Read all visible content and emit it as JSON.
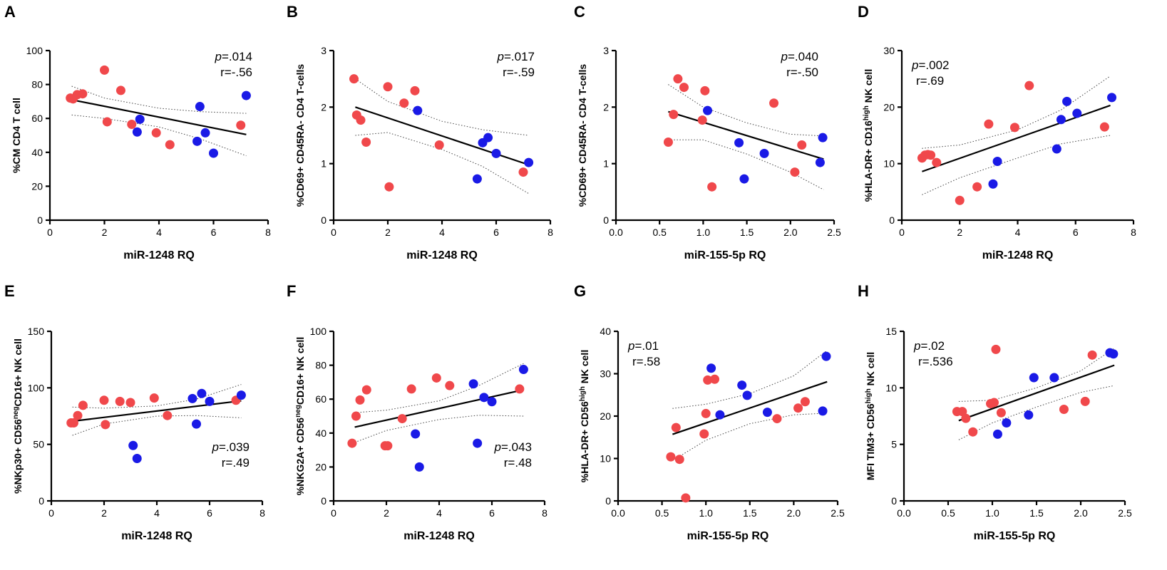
{
  "colors": {
    "red": "#f0484b",
    "blue": "#1a1ae6"
  },
  "chart_data": [
    {
      "type": "scatter",
      "panel": "A",
      "ylabel_parts": [
        {
          "t": "%CM CD4 T cell"
        }
      ],
      "xlabel": "miR-1248 RQ",
      "xlim": [
        0,
        8
      ],
      "ylim": [
        0,
        100
      ],
      "xticks": [
        "0",
        "2",
        "4",
        "6",
        "8"
      ],
      "yticks": [
        "0",
        "20",
        "40",
        "60",
        "80",
        "100"
      ],
      "stat_p": ".014",
      "stat_r": "r=-.56",
      "stat_pos": "top-right",
      "fit": [
        [
          0.8,
          71
        ],
        [
          7.2,
          50.5
        ]
      ],
      "ci_upper": [
        [
          0.8,
          79
        ],
        [
          2,
          72
        ],
        [
          4,
          66
        ],
        [
          5.5,
          64
        ],
        [
          7.2,
          63
        ]
      ],
      "ci_lower": [
        [
          0.8,
          62
        ],
        [
          2,
          60
        ],
        [
          4,
          55
        ],
        [
          5.5,
          48
        ],
        [
          7.2,
          38
        ]
      ],
      "series": [
        {
          "name": "red",
          "x": [
            0.75,
            0.85,
            1.0,
            1.2,
            2.0,
            2.1,
            2.6,
            3.0,
            3.9,
            4.4,
            7.0
          ],
          "y": [
            72,
            71.5,
            74,
            74.5,
            88.5,
            58,
            76.5,
            56.5,
            51.5,
            44.5,
            56
          ]
        },
        {
          "name": "blue",
          "x": [
            3.2,
            3.3,
            5.4,
            5.5,
            5.7,
            6.0,
            7.2
          ],
          "y": [
            52,
            59.5,
            46.5,
            67,
            51.5,
            39.5,
            73.5
          ]
        }
      ]
    },
    {
      "type": "scatter",
      "panel": "B",
      "ylabel_parts": [
        {
          "t": "%CD69+ CD45RA- CD4 T-cells"
        }
      ],
      "xlabel": "miR-1248 RQ",
      "xlim": [
        0,
        8
      ],
      "ylim": [
        0,
        3
      ],
      "xticks": [
        "0",
        "2",
        "4",
        "6",
        "8"
      ],
      "yticks": [
        "0",
        "1",
        "2",
        "3"
      ],
      "stat_p": ".017",
      "stat_r": "r=-.59",
      "stat_pos": "top-right",
      "fit": [
        [
          0.8,
          2.0
        ],
        [
          7.2,
          0.98
        ]
      ],
      "ci_upper": [
        [
          0.8,
          2.5
        ],
        [
          2,
          2.1
        ],
        [
          4,
          1.75
        ],
        [
          5.5,
          1.6
        ],
        [
          7.2,
          1.5
        ]
      ],
      "ci_lower": [
        [
          0.8,
          1.5
        ],
        [
          2,
          1.55
        ],
        [
          4,
          1.25
        ],
        [
          5.5,
          0.95
        ],
        [
          7.2,
          0.47
        ]
      ],
      "series": [
        {
          "name": "red",
          "x": [
            0.75,
            0.85,
            1.0,
            1.2,
            2.0,
            2.05,
            2.6,
            3.0,
            3.9,
            7.0
          ],
          "y": [
            2.5,
            1.86,
            1.77,
            1.38,
            2.36,
            0.59,
            2.07,
            2.29,
            1.33,
            0.85
          ]
        },
        {
          "name": "blue",
          "x": [
            3.1,
            5.3,
            5.5,
            5.7,
            6.0,
            7.2
          ],
          "y": [
            1.94,
            0.73,
            1.37,
            1.46,
            1.18,
            1.02
          ]
        }
      ]
    },
    {
      "type": "scatter",
      "panel": "C",
      "ylabel_parts": [
        {
          "t": "%CD69+ CD45RA- CD4 T-cells"
        }
      ],
      "xlabel": "miR-155-5p RQ",
      "xlim": [
        0,
        2.5
      ],
      "ylim": [
        0,
        3
      ],
      "xticks": [
        "0.0",
        "0.5",
        "1.0",
        "1.5",
        "2.0",
        "2.5"
      ],
      "yticks": [
        "0",
        "1",
        "2",
        "3"
      ],
      "stat_p": ".040",
      "stat_r": "r=-.50",
      "stat_pos": "top-right",
      "fit": [
        [
          0.6,
          1.92
        ],
        [
          2.38,
          1.08
        ]
      ],
      "ci_upper": [
        [
          0.6,
          2.4
        ],
        [
          1.0,
          2.0
        ],
        [
          1.5,
          1.72
        ],
        [
          2.0,
          1.52
        ],
        [
          2.38,
          1.49
        ]
      ],
      "ci_lower": [
        [
          0.6,
          1.42
        ],
        [
          1.0,
          1.42
        ],
        [
          1.5,
          1.17
        ],
        [
          2.0,
          0.85
        ],
        [
          2.38,
          0.54
        ]
      ],
      "series": [
        {
          "name": "red",
          "x": [
            0.6,
            0.66,
            0.71,
            0.78,
            0.99,
            1.02,
            1.1,
            1.81,
            2.05,
            2.13
          ],
          "y": [
            1.38,
            1.87,
            2.5,
            2.35,
            1.77,
            2.29,
            0.59,
            2.07,
            0.85,
            1.33
          ]
        },
        {
          "name": "blue",
          "x": [
            1.05,
            1.41,
            1.47,
            1.7,
            2.34,
            2.37
          ],
          "y": [
            1.94,
            1.37,
            0.73,
            1.18,
            1.02,
            1.46
          ]
        }
      ]
    },
    {
      "type": "scatter",
      "panel": "D",
      "ylabel_parts": [
        {
          "t": "%HLA-DR+ CD16"
        },
        {
          "t": "high",
          "sup": true
        },
        {
          "t": " NK cell"
        }
      ],
      "xlabel": "miR-1248 RQ",
      "xlim": [
        0,
        8
      ],
      "ylim": [
        0,
        30
      ],
      "xticks": [
        "0",
        "2",
        "4",
        "6",
        "8"
      ],
      "yticks": [
        "0",
        "10",
        "20",
        "30"
      ],
      "stat_p": ".002",
      "stat_r": "r=.69",
      "stat_pos": "top-left",
      "fit": [
        [
          0.7,
          8.6
        ],
        [
          7.2,
          20.3
        ]
      ],
      "ci_upper": [
        [
          0.7,
          12.7
        ],
        [
          2,
          13.3
        ],
        [
          4,
          16
        ],
        [
          5.5,
          19.5
        ],
        [
          7.2,
          25.5
        ]
      ],
      "ci_lower": [
        [
          0.7,
          4.5
        ],
        [
          2,
          7.5
        ],
        [
          4,
          11
        ],
        [
          5.5,
          13.5
        ],
        [
          7.2,
          15
        ]
      ],
      "series": [
        {
          "name": "red",
          "x": [
            0.7,
            0.8,
            0.9,
            1.0,
            1.2,
            2.0,
            2.6,
            3.0,
            3.9,
            4.4,
            7.0
          ],
          "y": [
            11,
            11.5,
            11.6,
            11.5,
            10.2,
            3.5,
            5.9,
            17,
            16.4,
            23.8,
            16.5
          ]
        },
        {
          "name": "blue",
          "x": [
            3.15,
            3.3,
            5.35,
            5.5,
            5.7,
            6.05,
            7.25
          ],
          "y": [
            6.4,
            10.4,
            12.6,
            17.8,
            21,
            18.9,
            21.7
          ]
        }
      ]
    },
    {
      "type": "scatter",
      "panel": "E",
      "ylabel_parts": [
        {
          "t": "%NKp30+ CD56"
        },
        {
          "t": "neg",
          "sup": true
        },
        {
          "t": "CD16+ NK cell"
        }
      ],
      "xlabel": "miR-1248 RQ",
      "xlim": [
        0,
        8
      ],
      "ylim": [
        0,
        150
      ],
      "xticks": [
        "0",
        "2",
        "4",
        "6",
        "8"
      ],
      "yticks": [
        "0",
        "50",
        "100",
        "150"
      ],
      "stat_p": ".039",
      "stat_r": "r=.49",
      "stat_pos": "bottom-right",
      "fit": [
        [
          0.8,
          70.5
        ],
        [
          7.2,
          88.5
        ]
      ],
      "ci_upper": [
        [
          0.8,
          83
        ],
        [
          2,
          82
        ],
        [
          4,
          84
        ],
        [
          5.5,
          90
        ],
        [
          7.2,
          103
        ]
      ],
      "ci_lower": [
        [
          0.8,
          58
        ],
        [
          2,
          68
        ],
        [
          4,
          75
        ],
        [
          5.5,
          75.5
        ],
        [
          7.2,
          73.5
        ]
      ],
      "series": [
        {
          "name": "red",
          "x": [
            0.75,
            0.85,
            1.0,
            1.2,
            2.0,
            2.05,
            2.6,
            3.0,
            3.9,
            4.4,
            7.0
          ],
          "y": [
            69,
            69,
            75.5,
            84.5,
            89,
            67.5,
            88,
            87,
            91,
            75.5,
            89
          ]
        },
        {
          "name": "blue",
          "x": [
            3.1,
            3.25,
            5.35,
            5.5,
            5.7,
            6.0,
            7.2
          ],
          "y": [
            49,
            37.5,
            90.5,
            68,
            95,
            88,
            93.5
          ]
        }
      ]
    },
    {
      "type": "scatter",
      "panel": "F",
      "ylabel_parts": [
        {
          "t": "%NKG2A+ CD56"
        },
        {
          "t": "neg",
          "sup": true
        },
        {
          "t": "CD16+ NK cell"
        }
      ],
      "xlabel": "miR-1248 RQ",
      "xlim": [
        0,
        8
      ],
      "ylim": [
        0,
        100
      ],
      "xticks": [
        "0",
        "2",
        "4",
        "6",
        "8"
      ],
      "yticks": [
        "0",
        "20",
        "40",
        "60",
        "80",
        "100"
      ],
      "stat_p": ".043",
      "stat_r": "r=.48",
      "stat_pos": "bottom-right",
      "fit": [
        [
          0.8,
          43.5
        ],
        [
          7.2,
          65.5
        ]
      ],
      "ci_upper": [
        [
          0.8,
          52
        ],
        [
          2,
          53.5
        ],
        [
          4,
          59
        ],
        [
          5.5,
          68
        ],
        [
          7.2,
          81
        ]
      ],
      "ci_lower": [
        [
          0.8,
          34.5
        ],
        [
          2,
          41.5
        ],
        [
          4,
          48
        ],
        [
          5.5,
          50.5
        ],
        [
          7.2,
          50
        ]
      ],
      "series": [
        {
          "name": "red",
          "x": [
            0.7,
            0.85,
            1.0,
            1.25,
            1.95,
            2.05,
            2.6,
            2.95,
            3.9,
            4.4,
            7.05
          ],
          "y": [
            34,
            50,
            59.5,
            65.5,
            32.5,
            32.5,
            48.5,
            66,
            72.5,
            68,
            66
          ]
        },
        {
          "name": "blue",
          "x": [
            3.1,
            3.25,
            5.3,
            5.45,
            5.7,
            6.0,
            7.2
          ],
          "y": [
            39.5,
            20,
            69,
            34,
            61,
            58.5,
            77.5
          ]
        }
      ]
    },
    {
      "type": "scatter",
      "panel": "G",
      "ylabel_parts": [
        {
          "t": "%HLA-DR+ CD56"
        },
        {
          "t": "high",
          "sup": true
        },
        {
          "t": " NK cell"
        }
      ],
      "xlabel": "miR-155-5p RQ",
      "xlim": [
        0,
        2.5
      ],
      "ylim": [
        0,
        40
      ],
      "xticks": [
        "0.0",
        "0.5",
        "1.0",
        "1.5",
        "2.0",
        "2.5"
      ],
      "yticks": [
        "0",
        "10",
        "20",
        "30",
        "40"
      ],
      "stat_p": ".01",
      "stat_r": "r=.58",
      "stat_pos": "top-left",
      "fit": [
        [
          0.62,
          15.7
        ],
        [
          2.38,
          28.1
        ]
      ],
      "ci_upper": [
        [
          0.62,
          21.8
        ],
        [
          1.0,
          22.8
        ],
        [
          1.5,
          25.3
        ],
        [
          2.0,
          29.5
        ],
        [
          2.38,
          35.5
        ]
      ],
      "ci_lower": [
        [
          0.62,
          9.5
        ],
        [
          1.0,
          14.3
        ],
        [
          1.5,
          18.2
        ],
        [
          2.0,
          20.3
        ],
        [
          2.38,
          20.7
        ]
      ],
      "series": [
        {
          "name": "red",
          "x": [
            0.6,
            0.66,
            0.7,
            0.77,
            0.98,
            1.0,
            1.02,
            1.1,
            1.81,
            2.05,
            2.13
          ],
          "y": [
            10.4,
            17.3,
            9.8,
            0.7,
            15.8,
            20.6,
            28.5,
            28.7,
            19.4,
            21.9,
            23.4
          ]
        },
        {
          "name": "blue",
          "x": [
            1.06,
            1.16,
            1.41,
            1.47,
            1.7,
            2.33,
            2.37
          ],
          "y": [
            31.3,
            20.3,
            27.3,
            24.9,
            20.9,
            21.2,
            34.1
          ]
        }
      ]
    },
    {
      "type": "scatter",
      "panel": "H",
      "ylabel_parts": [
        {
          "t": "MFI TIM3+ CD56"
        },
        {
          "t": "high",
          "sup": true
        },
        {
          "t": " NK cell"
        }
      ],
      "xlabel": "miR-155-5p RQ",
      "xlim": [
        0,
        2.5
      ],
      "ylim": [
        0,
        15
      ],
      "xticks": [
        "0.0",
        "0.5",
        "1.0",
        "1.5",
        "2.0",
        "2.5"
      ],
      "yticks": [
        "0",
        "5",
        "10",
        "15"
      ],
      "stat_p": ".02",
      "stat_r": "r=.536",
      "stat_pos": "top-left",
      "fit": [
        [
          0.62,
          7.1
        ],
        [
          2.38,
          12.0
        ]
      ],
      "ci_upper": [
        [
          0.62,
          8.8
        ],
        [
          1.0,
          8.9
        ],
        [
          1.5,
          10.0
        ],
        [
          2.0,
          11.5
        ],
        [
          2.38,
          13.5
        ]
      ],
      "ci_lower": [
        [
          0.62,
          5.4
        ],
        [
          1.0,
          6.9
        ],
        [
          1.5,
          8.3
        ],
        [
          2.0,
          9.6
        ],
        [
          2.38,
          10.2
        ]
      ],
      "series": [
        {
          "name": "red",
          "x": [
            0.6,
            0.66,
            0.7,
            0.78,
            0.98,
            1.02,
            1.1,
            1.81,
            2.05,
            2.13,
            1.04
          ],
          "y": [
            7.9,
            7.9,
            7.3,
            6.1,
            8.6,
            8.7,
            7.8,
            8.1,
            8.8,
            12.9,
            13.4
          ]
        },
        {
          "name": "blue",
          "x": [
            1.06,
            1.16,
            1.41,
            1.47,
            1.7,
            2.33,
            2.37
          ],
          "y": [
            5.9,
            6.9,
            7.6,
            10.9,
            10.9,
            13.1,
            13.0
          ]
        }
      ]
    }
  ]
}
